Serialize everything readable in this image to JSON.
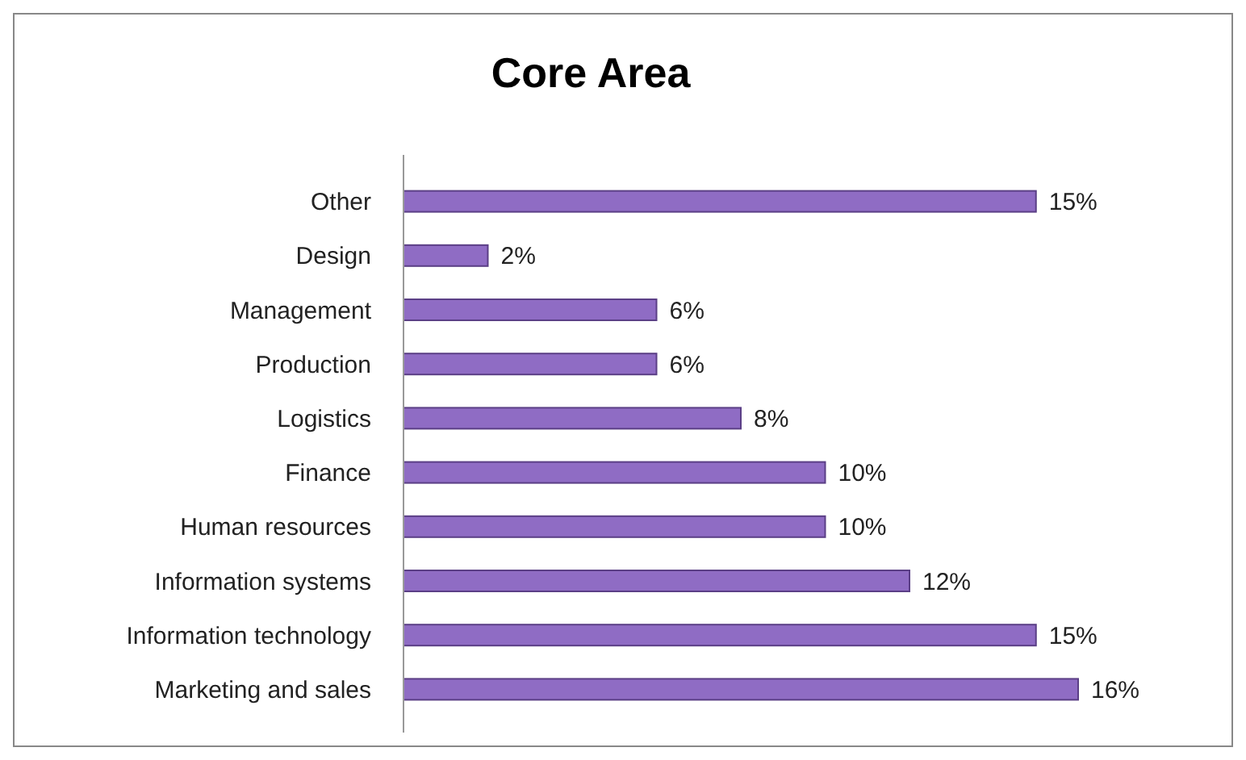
{
  "chart_data": {
    "type": "bar",
    "title": "Core Area",
    "orientation": "horizontal",
    "categories": [
      "Other",
      "Design",
      "Management",
      "Production",
      "Logistics",
      "Finance",
      "Human resources",
      "Information systems",
      "Information technology",
      "Marketing and sales"
    ],
    "values": [
      15,
      2,
      6,
      6,
      8,
      10,
      10,
      12,
      15,
      16
    ],
    "value_labels": [
      "15%",
      "2%",
      "6%",
      "6%",
      "8%",
      "10%",
      "10%",
      "12%",
      "15%",
      "16%"
    ],
    "color": "#8f6cc4"
  }
}
